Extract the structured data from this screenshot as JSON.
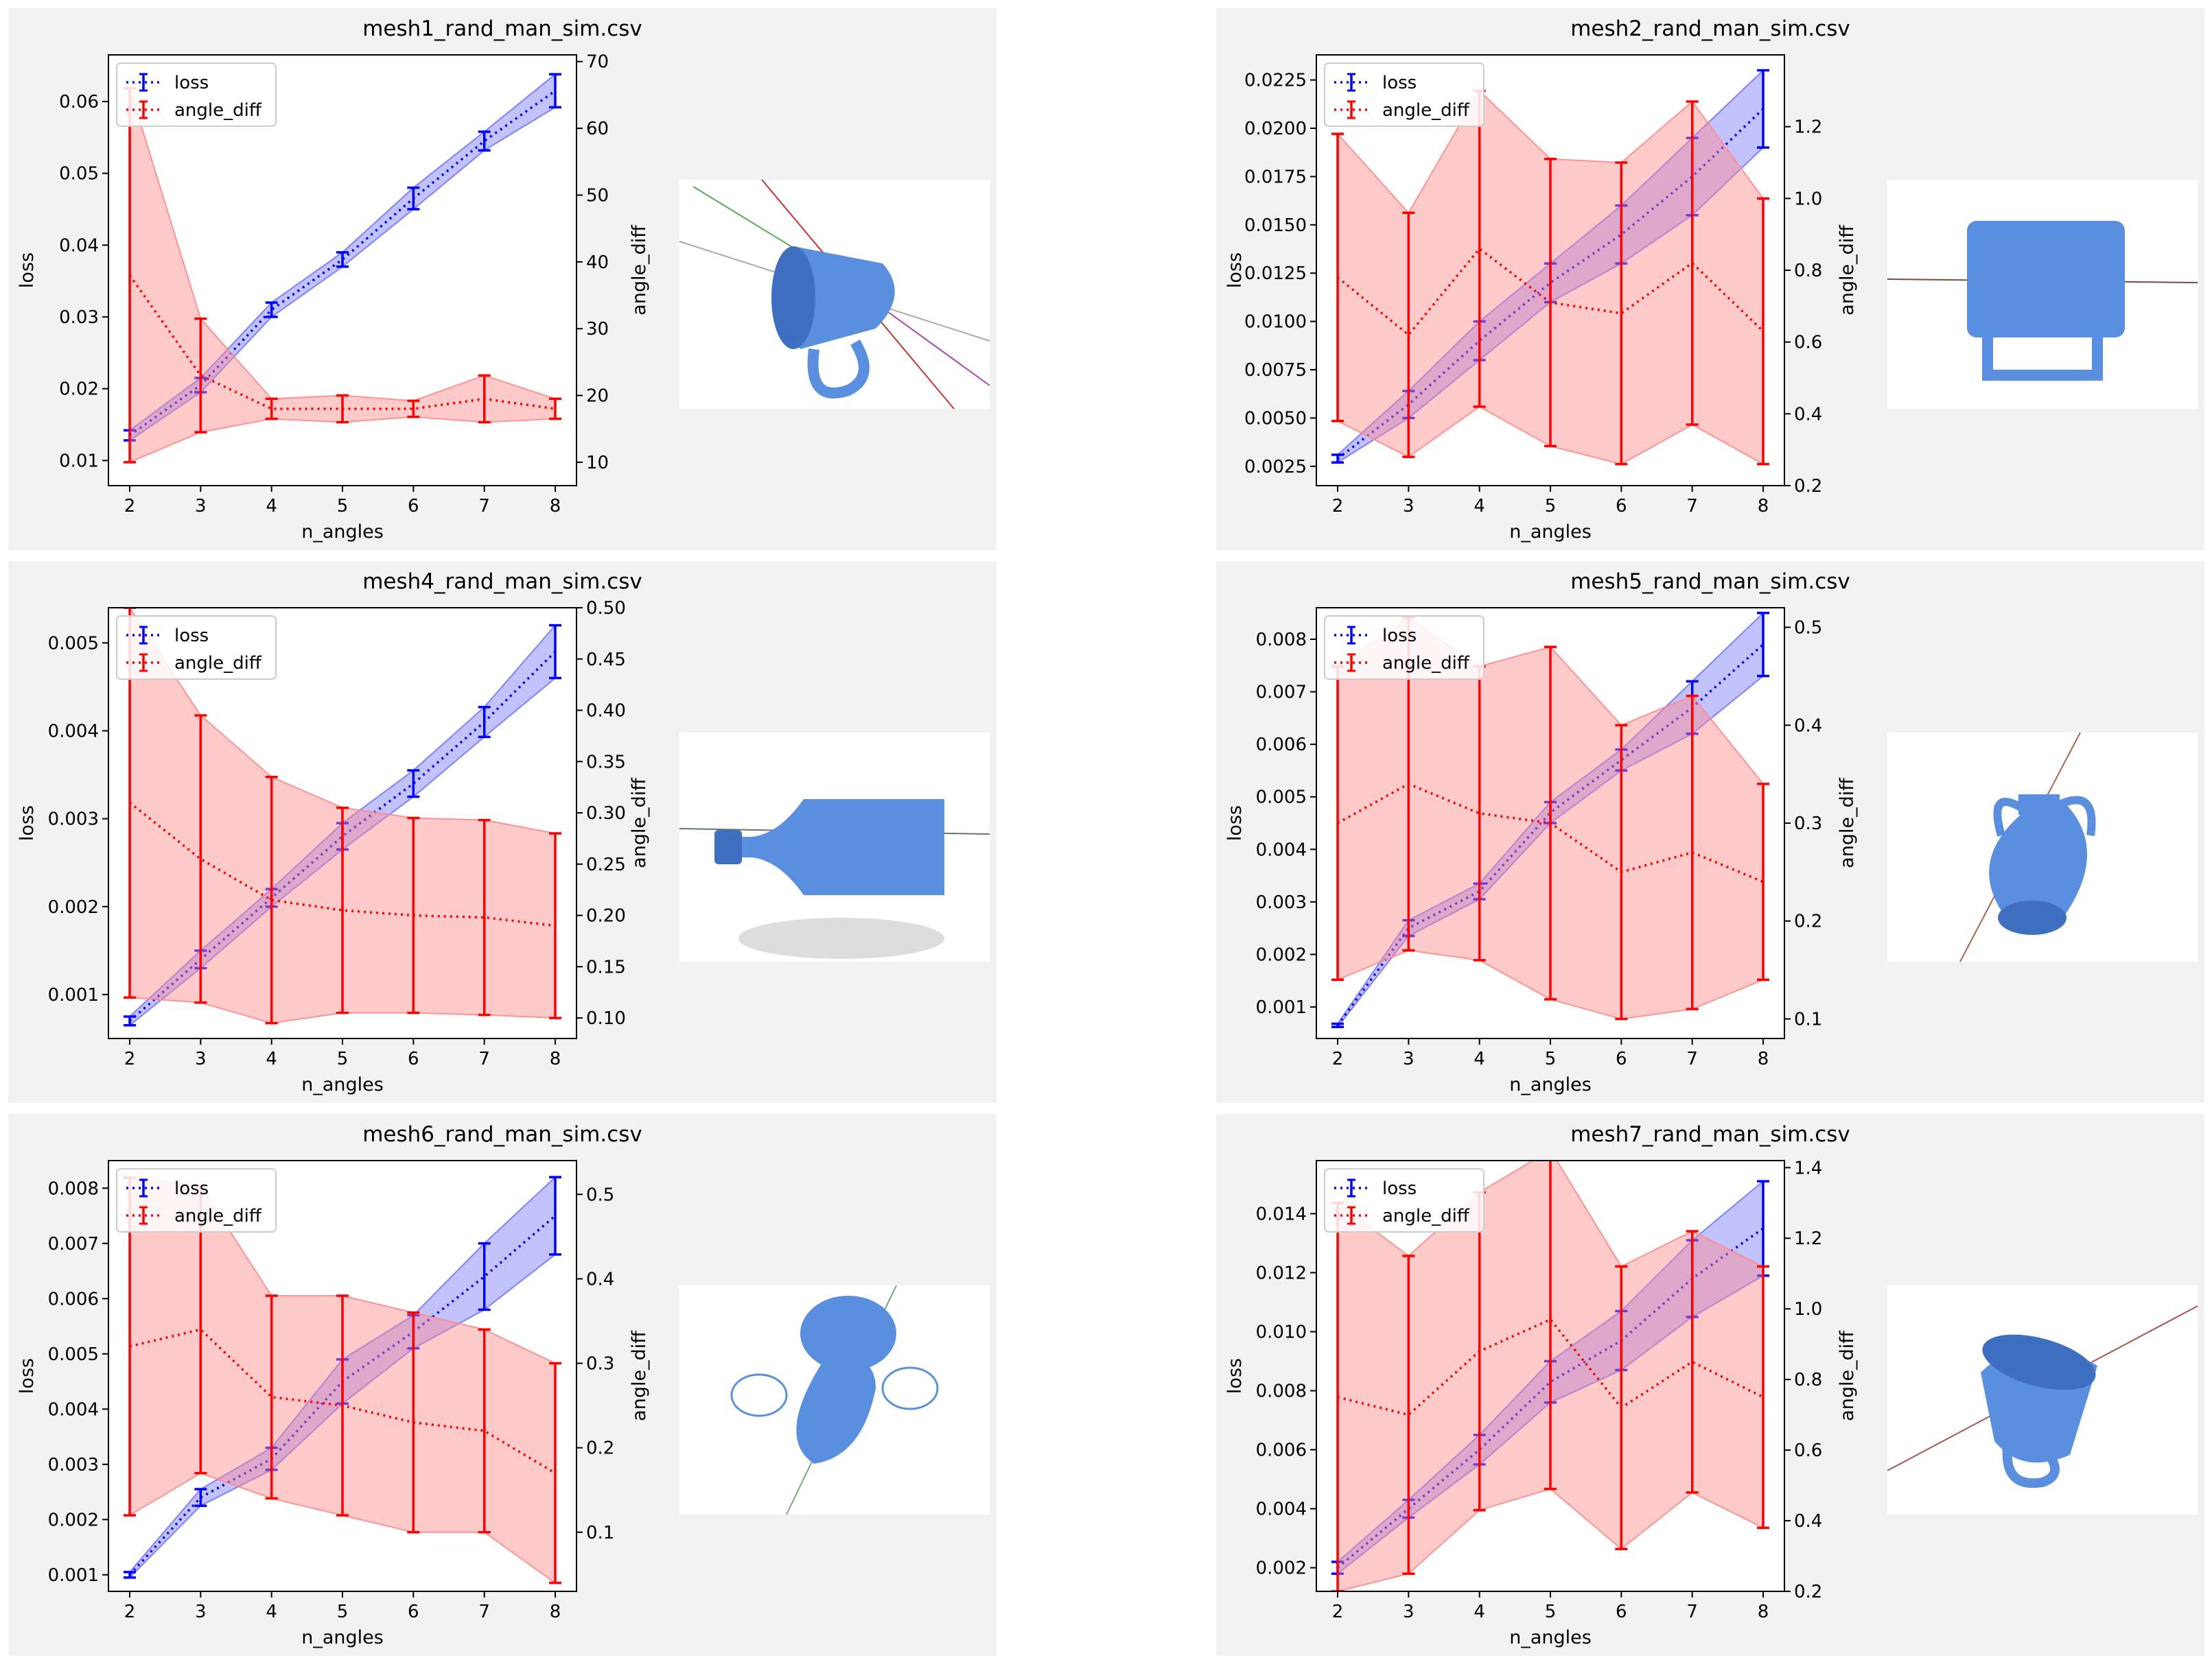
{
  "figure": {
    "background": "#ffffff",
    "panel_background": "#f2f2f2",
    "loss_color": "#0000ff",
    "angle_color": "#ff0000",
    "loss_band_color": "#7777ff",
    "angle_band_color": "#ff8a8a",
    "mesh_color": "#5a8fe0"
  },
  "chart_data": [
    {
      "type": "line",
      "title": "mesh1_rand_man_sim.csv",
      "xlabel": "n_angles",
      "ylabel": "loss",
      "y2label": "angle_diff",
      "x": [
        2,
        3,
        4,
        5,
        6,
        7,
        8
      ],
      "xticks": [
        "2",
        "3",
        "4",
        "5",
        "6",
        "7",
        "8"
      ],
      "ylim": [
        0.0065,
        0.0665
      ],
      "yticks": [
        "0.01",
        "0.02",
        "0.03",
        "0.04",
        "0.05",
        "0.06"
      ],
      "yticks_values": [
        0.01,
        0.02,
        0.03,
        0.04,
        0.05,
        0.06
      ],
      "y2lim": [
        6.5,
        71
      ],
      "y2ticks": [
        "10",
        "20",
        "30",
        "40",
        "50",
        "60",
        "70"
      ],
      "y2ticks_values": [
        10,
        20,
        30,
        40,
        50,
        60,
        70
      ],
      "legend": [
        "loss",
        "angle_diff"
      ],
      "legend_position": "upper-left",
      "thumbnail": "mug",
      "series": [
        {
          "name": "loss",
          "axis": "left",
          "values": [
            0.0135,
            0.0205,
            0.031,
            0.038,
            0.0465,
            0.0545,
            0.0615
          ],
          "err": [
            0.0007,
            0.001,
            0.001,
            0.001,
            0.0015,
            0.0013,
            0.0023
          ]
        },
        {
          "name": "angle_diff",
          "axis": "right",
          "values": [
            38,
            23,
            18,
            18,
            18,
            19.5,
            18
          ],
          "err": [
            28,
            8.5,
            1.5,
            2,
            1.2,
            3.5,
            1.5
          ]
        }
      ]
    },
    {
      "type": "line",
      "title": "mesh2_rand_man_sim.csv",
      "xlabel": "n_angles",
      "ylabel": "loss",
      "y2label": "angle_diff",
      "x": [
        2,
        3,
        4,
        5,
        6,
        7,
        8
      ],
      "xticks": [
        "2",
        "3",
        "4",
        "5",
        "6",
        "7",
        "8"
      ],
      "ylim": [
        0.0015,
        0.0238
      ],
      "yticks": [
        "0.0025",
        "0.0050",
        "0.0075",
        "0.0100",
        "0.0125",
        "0.0150",
        "0.0175",
        "0.0200",
        "0.0225"
      ],
      "yticks_values": [
        0.0025,
        0.005,
        0.0075,
        0.01,
        0.0125,
        0.015,
        0.0175,
        0.02,
        0.0225
      ],
      "y2lim": [
        0.2,
        1.4
      ],
      "y2ticks": [
        "0.2",
        "0.4",
        "0.6",
        "0.8",
        "1.0",
        "1.2"
      ],
      "y2ticks_values": [
        0.2,
        0.4,
        0.6,
        0.8,
        1.0,
        1.2
      ],
      "legend": [
        "loss",
        "angle_diff"
      ],
      "legend_position": "upper-left",
      "thumbnail": "tankard",
      "series": [
        {
          "name": "loss",
          "axis": "left",
          "values": [
            0.0029,
            0.0057,
            0.009,
            0.012,
            0.0145,
            0.0175,
            0.021
          ],
          "err": [
            0.0002,
            0.0007,
            0.001,
            0.001,
            0.0015,
            0.002,
            0.002
          ]
        },
        {
          "name": "angle_diff",
          "axis": "right",
          "values": [
            0.78,
            0.62,
            0.86,
            0.71,
            0.68,
            0.82,
            0.63
          ],
          "err": [
            0.4,
            0.34,
            0.44,
            0.4,
            0.42,
            0.45,
            0.37
          ]
        }
      ]
    },
    {
      "type": "line",
      "title": "mesh4_rand_man_sim.csv",
      "xlabel": "n_angles",
      "ylabel": "loss",
      "y2label": "angle_diff",
      "x": [
        2,
        3,
        4,
        5,
        6,
        7,
        8
      ],
      "xticks": [
        "2",
        "3",
        "4",
        "5",
        "6",
        "7",
        "8"
      ],
      "ylim": [
        0.0005,
        0.0054
      ],
      "yticks": [
        "0.001",
        "0.002",
        "0.003",
        "0.004",
        "0.005"
      ],
      "yticks_values": [
        0.001,
        0.002,
        0.003,
        0.004,
        0.005
      ],
      "y2lim": [
        0.08,
        0.5
      ],
      "y2ticks": [
        "0.10",
        "0.15",
        "0.20",
        "0.25",
        "0.30",
        "0.35",
        "0.40",
        "0.45",
        "0.50"
      ],
      "y2ticks_values": [
        0.1,
        0.15,
        0.2,
        0.25,
        0.3,
        0.35,
        0.4,
        0.45,
        0.5
      ],
      "legend": [
        "loss",
        "angle_diff"
      ],
      "legend_position": "upper-left",
      "thumbnail": "bottle",
      "series": [
        {
          "name": "loss",
          "axis": "left",
          "values": [
            0.0007,
            0.0014,
            0.0021,
            0.0028,
            0.0034,
            0.0041,
            0.0049
          ],
          "err": [
            5e-05,
            0.0001,
            0.0001,
            0.00015,
            0.00015,
            0.00017,
            0.0003
          ]
        },
        {
          "name": "angle_diff",
          "axis": "right",
          "values": [
            0.31,
            0.255,
            0.215,
            0.205,
            0.2,
            0.198,
            0.19
          ],
          "err": [
            0.19,
            0.14,
            0.12,
            0.1,
            0.095,
            0.095,
            0.09
          ]
        }
      ]
    },
    {
      "type": "line",
      "title": "mesh5_rand_man_sim.csv",
      "xlabel": "n_angles",
      "ylabel": "loss",
      "y2label": "angle_diff",
      "x": [
        2,
        3,
        4,
        5,
        6,
        7,
        8
      ],
      "xticks": [
        "2",
        "3",
        "4",
        "5",
        "6",
        "7",
        "8"
      ],
      "ylim": [
        0.0004,
        0.0086
      ],
      "yticks": [
        "0.001",
        "0.002",
        "0.003",
        "0.004",
        "0.005",
        "0.006",
        "0.007",
        "0.008"
      ],
      "yticks_values": [
        0.001,
        0.002,
        0.003,
        0.004,
        0.005,
        0.006,
        0.007,
        0.008
      ],
      "y2lim": [
        0.08,
        0.52
      ],
      "y2ticks": [
        "0.1",
        "0.2",
        "0.3",
        "0.4",
        "0.5"
      ],
      "y2ticks_values": [
        0.1,
        0.2,
        0.3,
        0.4,
        0.5
      ],
      "legend": [
        "loss",
        "angle_diff"
      ],
      "legend_position": "upper-left",
      "thumbnail": "amphora",
      "series": [
        {
          "name": "loss",
          "axis": "left",
          "values": [
            0.00065,
            0.0025,
            0.0032,
            0.0047,
            0.0057,
            0.0067,
            0.0079
          ],
          "err": [
            3e-05,
            0.00015,
            0.00015,
            0.0002,
            0.0002,
            0.0005,
            0.0006
          ]
        },
        {
          "name": "angle_diff",
          "axis": "right",
          "values": [
            0.3,
            0.34,
            0.31,
            0.3,
            0.25,
            0.27,
            0.24
          ],
          "err": [
            0.16,
            0.17,
            0.15,
            0.18,
            0.15,
            0.16,
            0.1
          ]
        }
      ]
    },
    {
      "type": "line",
      "title": "mesh6_rand_man_sim.csv",
      "xlabel": "n_angles",
      "ylabel": "loss",
      "y2label": "angle_diff",
      "x": [
        2,
        3,
        4,
        5,
        6,
        7,
        8
      ],
      "xticks": [
        "2",
        "3",
        "4",
        "5",
        "6",
        "7",
        "8"
      ],
      "ylim": [
        0.0007,
        0.0085
      ],
      "yticks": [
        "0.001",
        "0.002",
        "0.003",
        "0.004",
        "0.005",
        "0.006",
        "0.007",
        "0.008"
      ],
      "yticks_values": [
        0.001,
        0.002,
        0.003,
        0.004,
        0.005,
        0.006,
        0.007,
        0.008
      ],
      "y2lim": [
        0.03,
        0.54
      ],
      "y2ticks": [
        "0.1",
        "0.2",
        "0.3",
        "0.4",
        "0.5"
      ],
      "y2ticks_values": [
        0.1,
        0.2,
        0.3,
        0.4,
        0.5
      ],
      "legend": [
        "loss",
        "angle_diff"
      ],
      "legend_position": "upper-left",
      "thumbnail": "vase",
      "series": [
        {
          "name": "loss",
          "axis": "left",
          "values": [
            0.001,
            0.0024,
            0.0031,
            0.0045,
            0.0054,
            0.0064,
            0.0075
          ],
          "err": [
            5e-05,
            0.00015,
            0.0002,
            0.0004,
            0.0003,
            0.0006,
            0.0007
          ]
        },
        {
          "name": "angle_diff",
          "axis": "right",
          "values": [
            0.32,
            0.34,
            0.26,
            0.25,
            0.23,
            0.22,
            0.17
          ],
          "err": [
            0.2,
            0.17,
            0.12,
            0.13,
            0.13,
            0.12,
            0.13
          ]
        }
      ]
    },
    {
      "type": "line",
      "title": "mesh7_rand_man_sim.csv",
      "xlabel": "n_angles",
      "ylabel": "loss",
      "y2label": "angle_diff",
      "x": [
        2,
        3,
        4,
        5,
        6,
        7,
        8
      ],
      "xticks": [
        "2",
        "3",
        "4",
        "5",
        "6",
        "7",
        "8"
      ],
      "ylim": [
        0.0012,
        0.0158
      ],
      "yticks": [
        "0.002",
        "0.004",
        "0.006",
        "0.008",
        "0.010",
        "0.012",
        "0.014"
      ],
      "yticks_values": [
        0.002,
        0.004,
        0.006,
        0.008,
        0.01,
        0.012,
        0.014
      ],
      "y2lim": [
        0.2,
        1.42
      ],
      "y2ticks": [
        "0.2",
        "0.4",
        "0.6",
        "0.8",
        "1.0",
        "1.2",
        "1.4"
      ],
      "y2ticks_values": [
        0.2,
        0.4,
        0.6,
        0.8,
        1.0,
        1.2,
        1.4
      ],
      "legend": [
        "loss",
        "angle_diff"
      ],
      "legend_position": "upper-left",
      "thumbnail": "cup",
      "series": [
        {
          "name": "loss",
          "axis": "left",
          "values": [
            0.002,
            0.004,
            0.006,
            0.0083,
            0.0097,
            0.0118,
            0.0135
          ],
          "err": [
            0.0002,
            0.0003,
            0.0005,
            0.0007,
            0.001,
            0.0013,
            0.0016
          ]
        },
        {
          "name": "angle_diff",
          "axis": "right",
          "values": [
            0.75,
            0.7,
            0.88,
            0.97,
            0.72,
            0.85,
            0.75
          ],
          "err": [
            0.55,
            0.45,
            0.45,
            0.48,
            0.4,
            0.37,
            0.37
          ]
        }
      ]
    }
  ]
}
